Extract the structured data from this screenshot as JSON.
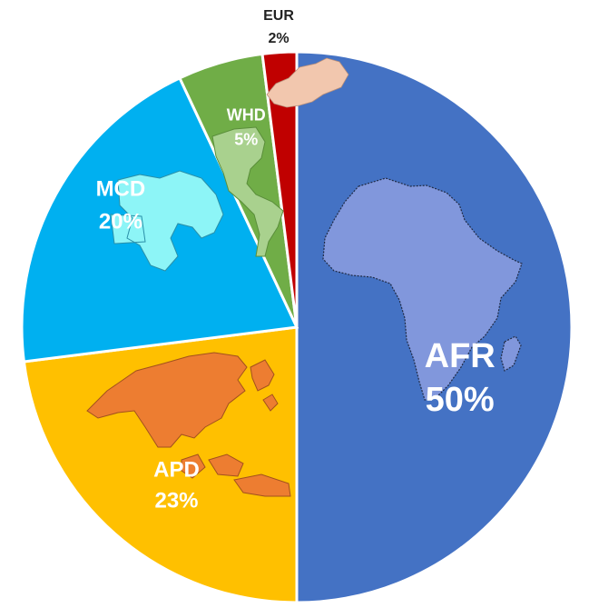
{
  "chart_data": {
    "type": "pie",
    "title": "",
    "slices": [
      {
        "name": "AFR",
        "value": 50,
        "value_label": "50%",
        "color": "#4472C4",
        "map_color": "#8197DC",
        "map_icon": "africa-map-icon"
      },
      {
        "name": "APD",
        "value": 23,
        "value_label": "23%",
        "color": "#FFC000",
        "map_color": "#ED7D31",
        "map_icon": "asia-pacific-map-icon"
      },
      {
        "name": "MCD",
        "value": 20,
        "value_label": "20%",
        "color": "#00B0F0",
        "map_color": "#8DF5F7",
        "map_icon": "middle-east-map-icon"
      },
      {
        "name": "WHD",
        "value": 5,
        "value_label": "5%",
        "color": "#70AD47",
        "map_color": "#A9D18E",
        "map_icon": "americas-map-icon"
      },
      {
        "name": "EUR",
        "value": 2,
        "value_label": "2%",
        "color": "#C00000",
        "map_color": "#F2C7AE",
        "map_icon": "europe-map-icon"
      }
    ],
    "start_angle_deg": 0,
    "direction": "clockwise",
    "legend": "none",
    "labels_position": "inside"
  }
}
